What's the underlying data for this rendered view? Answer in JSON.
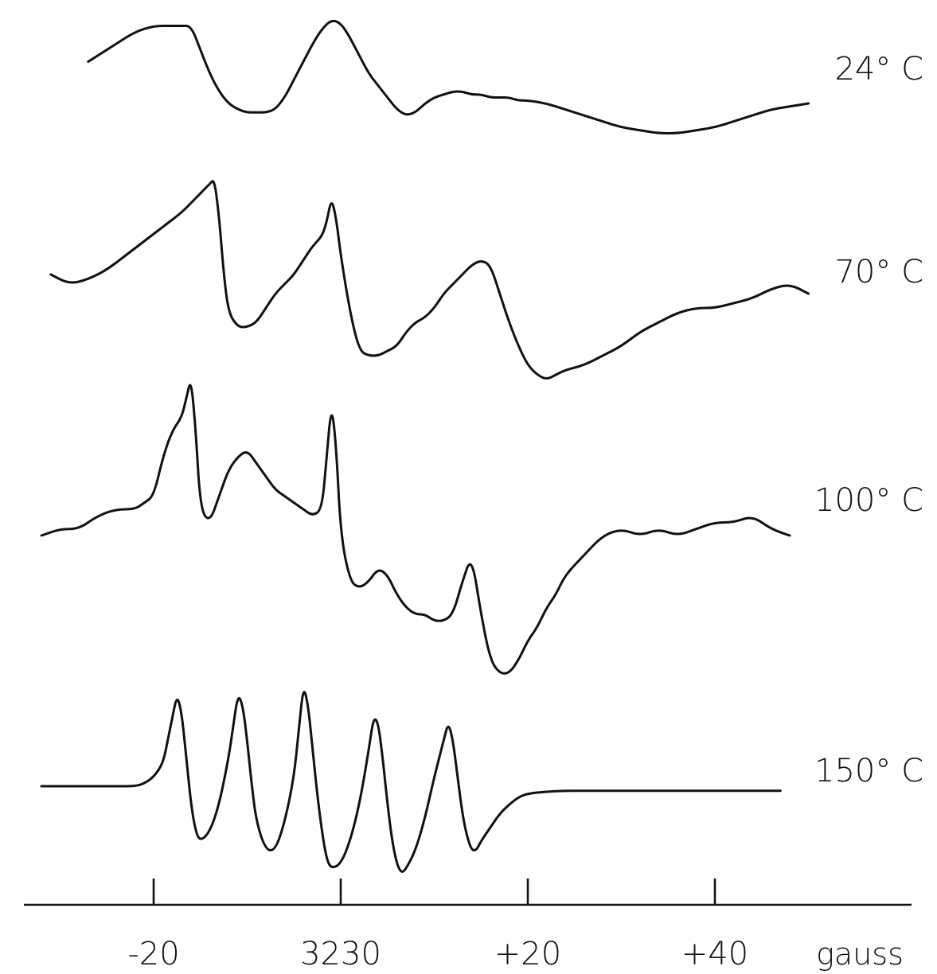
{
  "chart_data": {
    "type": "line",
    "xlabel": "gauss",
    "xlim": [
      -31,
      51
    ],
    "x_ticks": [
      {
        "value": -20,
        "label": "-20"
      },
      {
        "value": 0,
        "label": "3230"
      },
      {
        "value": 20,
        "label": "+20"
      },
      {
        "value": 40,
        "label": "+40"
      }
    ],
    "series": [
      {
        "name": "24° C",
        "x": [
          -27,
          -26,
          -24,
          -22,
          -20,
          -18,
          -17,
          -16,
          -15,
          -14,
          -13,
          -12,
          -11,
          -10,
          -9,
          -8,
          -7,
          -6,
          -5,
          -4,
          -3,
          -2,
          -1,
          0,
          1,
          2,
          3,
          4,
          5,
          6,
          7,
          8,
          9,
          10,
          11,
          12,
          13,
          14,
          15,
          16,
          17,
          18,
          19,
          20,
          22,
          24,
          26,
          28,
          30,
          32,
          34,
          36,
          38,
          40,
          42,
          44,
          46,
          48,
          50
        ],
        "y": [
          0.3,
          0.4,
          0.6,
          0.8,
          0.9,
          0.9,
          0.9,
          0.9,
          0.5,
          0.1,
          -0.2,
          -0.4,
          -0.5,
          -0.55,
          -0.55,
          -0.55,
          -0.5,
          -0.3,
          0.0,
          0.3,
          0.6,
          0.85,
          1.0,
          0.95,
          0.7,
          0.4,
          0.1,
          -0.1,
          -0.3,
          -0.5,
          -0.6,
          -0.55,
          -0.4,
          -0.3,
          -0.25,
          -0.2,
          -0.2,
          -0.25,
          -0.25,
          -0.3,
          -0.3,
          -0.3,
          -0.35,
          -0.35,
          -0.4,
          -0.5,
          -0.6,
          -0.7,
          -0.8,
          -0.85,
          -0.9,
          -0.9,
          -0.85,
          -0.8,
          -0.7,
          -0.6,
          -0.5,
          -0.45,
          -0.4
        ]
      },
      {
        "name": "70° C",
        "x": [
          -31,
          -29,
          -27,
          -25,
          -23,
          -21,
          -19,
          -17,
          -16,
          -15,
          -14,
          -13.5,
          -13,
          -12.5,
          -12,
          -11,
          -10,
          -9,
          -8,
          -7,
          -6,
          -5,
          -4,
          -3,
          -2,
          -1.5,
          -1,
          -0.5,
          0,
          1,
          2,
          3,
          4,
          5,
          6,
          7,
          8,
          9,
          10,
          11,
          12,
          13,
          14,
          15,
          16,
          17,
          18,
          19,
          20,
          21,
          22,
          23,
          24,
          26,
          28,
          30,
          32,
          34,
          36,
          38,
          40,
          42,
          44,
          46,
          48,
          50
        ],
        "y": [
          0.0,
          -0.1,
          -0.05,
          0.05,
          0.2,
          0.35,
          0.5,
          0.65,
          0.75,
          0.85,
          0.95,
          1.0,
          0.6,
          0.0,
          -0.4,
          -0.55,
          -0.55,
          -0.5,
          -0.35,
          -0.2,
          -0.1,
          0.0,
          0.15,
          0.3,
          0.4,
          0.55,
          0.8,
          0.6,
          0.2,
          -0.4,
          -0.8,
          -0.85,
          -0.85,
          -0.8,
          -0.75,
          -0.6,
          -0.5,
          -0.45,
          -0.35,
          -0.2,
          -0.1,
          0.0,
          0.1,
          0.15,
          0.1,
          -0.2,
          -0.5,
          -0.75,
          -0.95,
          -1.05,
          -1.1,
          -1.05,
          -1.0,
          -0.95,
          -0.85,
          -0.75,
          -0.6,
          -0.5,
          -0.4,
          -0.35,
          -0.35,
          -0.3,
          -0.25,
          -0.15,
          -0.1,
          -0.2
        ]
      },
      {
        "name": "100° C",
        "x": [
          -32,
          -30,
          -28,
          -26,
          -24,
          -22,
          -21,
          -20,
          -19,
          -18,
          -17,
          -16.5,
          -16,
          -15.5,
          -15,
          -14,
          -13,
          -12,
          -11,
          -10,
          -9,
          -8,
          -7,
          -6,
          -5,
          -4,
          -3,
          -2,
          -1.5,
          -1,
          -0.5,
          0,
          1,
          2,
          3,
          4,
          5,
          6,
          7,
          8,
          9,
          10,
          11,
          12,
          13,
          14,
          15,
          16,
          17,
          18,
          19,
          20,
          21,
          22,
          23,
          24,
          26,
          28,
          30,
          32,
          34,
          36,
          38,
          40,
          42,
          44,
          46,
          48
        ],
        "y": [
          -0.2,
          -0.15,
          -0.15,
          -0.05,
          0.0,
          0.0,
          0.05,
          0.1,
          0.4,
          0.6,
          0.7,
          0.85,
          1.0,
          0.6,
          0.0,
          -0.1,
          0.1,
          0.3,
          0.4,
          0.45,
          0.35,
          0.25,
          0.15,
          0.1,
          0.05,
          0.0,
          -0.05,
          0.0,
          0.4,
          0.8,
          0.5,
          -0.2,
          -0.55,
          -0.6,
          -0.55,
          -0.45,
          -0.5,
          -0.65,
          -0.75,
          -0.8,
          -0.8,
          -0.85,
          -0.85,
          -0.8,
          -0.55,
          -0.35,
          -0.8,
          -1.15,
          -1.25,
          -1.25,
          -1.15,
          -1.0,
          -0.9,
          -0.75,
          -0.65,
          -0.5,
          -0.35,
          -0.2,
          -0.15,
          -0.2,
          -0.15,
          -0.2,
          -0.15,
          -0.1,
          -0.1,
          -0.05,
          -0.15,
          -0.2
        ]
      },
      {
        "name": "150° C",
        "x": [
          -32,
          -28,
          -24,
          -22,
          -21,
          -20,
          -19,
          -18.5,
          -18,
          -17.5,
          -17,
          -16.5,
          -16,
          -15.5,
          -15,
          -14,
          -13,
          -12,
          -11.5,
          -11,
          -10.5,
          -10,
          -9.5,
          -9,
          -8,
          -7,
          -6,
          -5,
          -4.5,
          -4,
          -3.5,
          -3,
          -2.5,
          -2,
          -1.5,
          -1,
          0,
          1,
          2,
          3,
          3.5,
          4,
          4.5,
          5,
          5.5,
          6,
          6.5,
          7,
          8,
          9,
          10,
          11,
          11.5,
          12,
          12.5,
          13,
          13.5,
          14,
          14.5,
          15,
          16,
          17,
          18,
          19,
          20,
          22,
          24,
          26,
          30,
          35,
          40,
          45,
          47
        ],
        "y": [
          0.0,
          0.0,
          0.0,
          0.0,
          0.03,
          0.1,
          0.25,
          0.5,
          0.75,
          1.0,
          0.8,
          0.3,
          -0.2,
          -0.5,
          -0.6,
          -0.5,
          -0.2,
          0.3,
          0.65,
          1.0,
          0.9,
          0.5,
          0.0,
          -0.4,
          -0.7,
          -0.7,
          -0.4,
          0.1,
          0.6,
          1.1,
          0.9,
          0.4,
          -0.1,
          -0.5,
          -0.8,
          -0.9,
          -0.85,
          -0.6,
          -0.2,
          0.4,
          0.75,
          0.7,
          0.3,
          -0.2,
          -0.6,
          -0.85,
          -0.95,
          -0.9,
          -0.7,
          -0.35,
          0.1,
          0.5,
          0.7,
          0.5,
          0.1,
          -0.3,
          -0.55,
          -0.7,
          -0.7,
          -0.6,
          -0.45,
          -0.3,
          -0.2,
          -0.12,
          -0.08,
          -0.06,
          -0.05,
          -0.05,
          -0.05,
          -0.05,
          -0.05,
          -0.05,
          -0.05
        ]
      }
    ],
    "grid": false,
    "legend": "none"
  }
}
